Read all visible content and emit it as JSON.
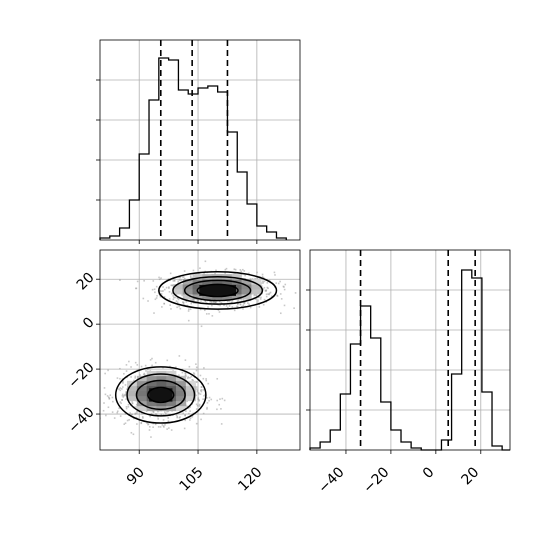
{
  "chart_data": [
    {
      "type": "bar",
      "panel": "histogram-x",
      "title": "",
      "xlabel": "",
      "ylabel": "",
      "xlim": [
        80,
        131
      ],
      "ylim": [
        0,
        1
      ],
      "edges": [
        80,
        82.5,
        85,
        87.5,
        90,
        92.5,
        95,
        97.5,
        100,
        102.5,
        105,
        107.5,
        110,
        112.5,
        115,
        117.5,
        120,
        122.5,
        125,
        127.5
      ],
      "values": [
        0.01,
        0.02,
        0.06,
        0.2,
        0.43,
        0.7,
        0.91,
        0.9,
        0.75,
        0.73,
        0.76,
        0.77,
        0.74,
        0.54,
        0.34,
        0.18,
        0.07,
        0.04,
        0.01
      ],
      "quantiles": [
        95.5,
        103.5,
        112.5
      ],
      "xticks": [],
      "grid": true
    },
    {
      "type": "heatmap",
      "panel": "joint-2d",
      "title": "",
      "xlabel": "",
      "ylabel": "",
      "xlim": [
        80,
        131
      ],
      "ylim": [
        -56,
        33
      ],
      "xticks": [
        "90",
        "105",
        "120"
      ],
      "yticks": [
        "20",
        "0",
        "−20",
        "−40"
      ],
      "xtick_values": [
        90,
        105,
        120
      ],
      "ytick_values": [
        20,
        0,
        -20,
        -40
      ],
      "clusters": [
        {
          "center_x": 110,
          "center_y": 15,
          "levels": [
            [
              5.2,
              2.7
            ],
            [
              8.4,
              4.5
            ],
            [
              11.4,
              6.1
            ],
            [
              15,
              8.3
            ]
          ]
        },
        {
          "center_x": 95.5,
          "center_y": -31.5,
          "levels": [
            [
              3.3,
              3.3
            ],
            [
              6.2,
              6.4
            ],
            [
              8.6,
              9.3
            ],
            [
              11.5,
              12.5
            ]
          ]
        }
      ],
      "grid": true
    },
    {
      "type": "bar",
      "panel": "histogram-y",
      "title": "",
      "xlabel": "",
      "ylabel": "",
      "xlim": [
        -56,
        33
      ],
      "ylim": [
        0,
        1
      ],
      "edges": [
        -56,
        -51.5,
        -47,
        -42.5,
        -38,
        -33.5,
        -29,
        -24.5,
        -20,
        -15.5,
        -11,
        -6.5,
        -2,
        2.5,
        7,
        11.5,
        16,
        20.5,
        25,
        29.5,
        33
      ],
      "values": [
        0.01,
        0.04,
        0.1,
        0.28,
        0.53,
        0.72,
        0.56,
        0.24,
        0.1,
        0.04,
        0.01,
        0,
        0,
        0.05,
        0.38,
        0.9,
        0.86,
        0.29,
        0.02,
        0
      ],
      "quantiles": [
        -33.5,
        5.5,
        17.5
      ],
      "xticks": [
        "−40",
        "−20",
        "0",
        "20"
      ],
      "xtick_values": [
        -40,
        -20,
        0,
        20
      ],
      "grid": true
    }
  ]
}
